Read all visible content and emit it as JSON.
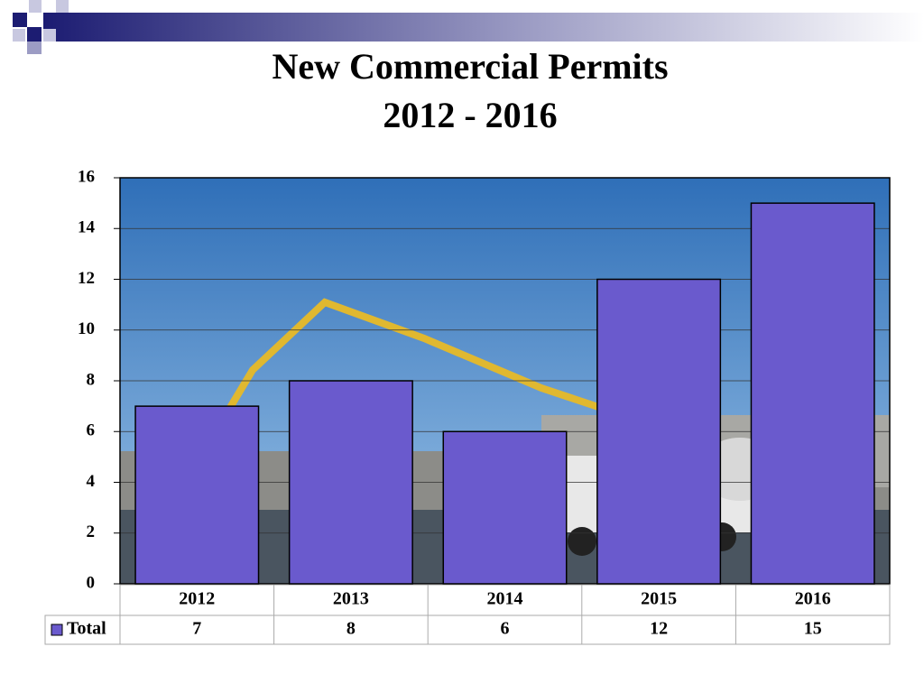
{
  "chart_data": {
    "type": "bar",
    "title": "New Commercial Permits",
    "subtitle": "2012 - 2016",
    "categories": [
      "2012",
      "2013",
      "2014",
      "2015",
      "2016"
    ],
    "series": [
      {
        "name": "Total",
        "color": "#6a5acd",
        "values": [
          7,
          8,
          6,
          12,
          15
        ]
      }
    ],
    "ylim": [
      0,
      16
    ],
    "yticks": [
      0,
      2,
      4,
      6,
      8,
      10,
      12,
      14,
      16
    ],
    "grid": true
  }
}
